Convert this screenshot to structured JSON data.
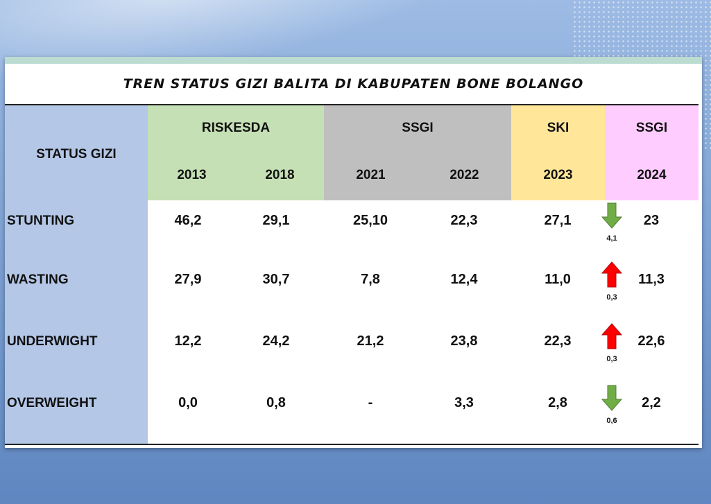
{
  "title": "TREN STATUS GIZI BALITA DI KABUPATEN BONE BOLANGO",
  "header": {
    "status_label": "STATUS GIZI",
    "groups": [
      "RISKESDA",
      "SSGI",
      "SKI",
      "SSGI"
    ],
    "years": [
      "2013",
      "2018",
      "2021",
      "2022",
      "2023",
      "2024"
    ]
  },
  "rows": [
    {
      "label": "STUNTING",
      "values": [
        "46,2",
        "29,1",
        "25,10",
        "22,3",
        "27,1",
        "23"
      ],
      "trend": "down",
      "trend_color": "#70ad47",
      "delta": "4,1"
    },
    {
      "label": "WASTING",
      "values": [
        "27,9",
        "30,7",
        "7,8",
        "12,4",
        "11,0",
        "11,3"
      ],
      "trend": "up",
      "trend_color": "#ff0000",
      "delta": "0,3"
    },
    {
      "label": "UNDERWIGHT",
      "values": [
        "12,2",
        "24,2",
        "21,2",
        "23,8",
        "22,3",
        "22,6"
      ],
      "trend": "up",
      "trend_color": "#ff0000",
      "delta": "0,3"
    },
    {
      "label": "OVERWEIGHT",
      "values": [
        "0,0",
        "0,8",
        "-",
        "3,3",
        "2,8",
        "2,2"
      ],
      "trend": "down",
      "trend_color": "#70ad47",
      "delta": "0,6"
    }
  ],
  "colors": {
    "riskesda": "#c5e0b4",
    "ssgi": "#bfbfbf",
    "ski": "#ffe699",
    "ssgi_2024": "#ffccff",
    "status_column": "#b4c7e7"
  }
}
